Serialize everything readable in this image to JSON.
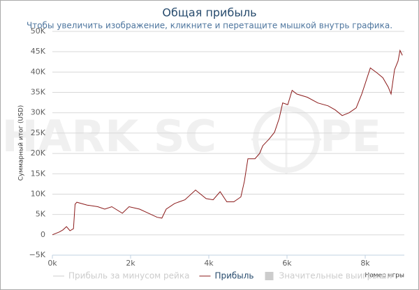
{
  "chart_data": {
    "type": "line",
    "title": "Общая прибыль",
    "subtitle": "Чтобы увеличить изображение, кликните и перетащите мышкой внутрь графика.",
    "y_label": "Суммарный итог (USD)",
    "x_label": "Номер игры",
    "watermark": [
      "SHARK SC",
      "PE"
    ],
    "x": [
      0,
      180,
      270,
      360,
      450,
      540,
      580,
      625,
      890,
      1160,
      1340,
      1520,
      1790,
      1960,
      2230,
      2410,
      2680,
      2800,
      2910,
      3125,
      3390,
      3660,
      3930,
      4110,
      4290,
      4460,
      4640,
      4820,
      4910,
      5000,
      5180,
      5300,
      5380,
      5540,
      5680,
      5800,
      5890,
      6020,
      6130,
      6250,
      6520,
      6790,
      7050,
      7230,
      7410,
      7590,
      7770,
      7910,
      7980,
      8130,
      8300,
      8450,
      8590,
      8660,
      8750,
      8840,
      8890,
      8950
    ],
    "series": [
      {
        "name": "Прибыль",
        "color": "#8b1a1a",
        "values": [
          0,
          700,
          1200,
          2000,
          1000,
          1500,
          7500,
          8000,
          7300,
          6900,
          6300,
          6900,
          5300,
          6900,
          6300,
          5500,
          4300,
          4100,
          6300,
          7700,
          8600,
          11000,
          8900,
          8600,
          10600,
          8100,
          8100,
          9300,
          13200,
          18700,
          18700,
          20000,
          21900,
          23500,
          25200,
          28600,
          32400,
          32000,
          35500,
          34600,
          33800,
          32400,
          31700,
          30700,
          29300,
          30000,
          31200,
          34600,
          36600,
          41000,
          39800,
          38600,
          36300,
          34600,
          40600,
          42700,
          45300,
          44100
        ]
      }
    ],
    "inactive_legend": [
      {
        "name": "Прибыль за минусом рейка",
        "color": "#cccccc",
        "symbol": "line"
      },
      {
        "name": "Значительные выигрыши",
        "color": "#cccccc",
        "symbol": "box"
      }
    ],
    "xlim": [
      0,
      9000
    ],
    "xticks": [
      {
        "value": 0,
        "label": "0k"
      },
      {
        "value": 2000,
        "label": "2k"
      },
      {
        "value": 4000,
        "label": "4k"
      },
      {
        "value": 6000,
        "label": "6k"
      },
      {
        "value": 8000,
        "label": "8k"
      }
    ],
    "ylim": [
      -5000,
      50000
    ],
    "yticks": [
      {
        "value": -5000,
        "label": "−5K"
      },
      0,
      {
        "value": 5000,
        "label": "5K"
      },
      {
        "value": 10000,
        "label": "10K"
      },
      {
        "value": 15000,
        "label": "15K"
      },
      {
        "value": 20000,
        "label": "20K"
      },
      {
        "value": 25000,
        "label": "25K"
      },
      {
        "value": 30000,
        "label": "30K"
      },
      {
        "value": 35000,
        "label": "35K"
      },
      {
        "value": 40000,
        "label": "40K"
      },
      {
        "value": 45000,
        "label": "45K"
      },
      {
        "value": 50000,
        "label": "50K"
      }
    ],
    "grid": true
  }
}
